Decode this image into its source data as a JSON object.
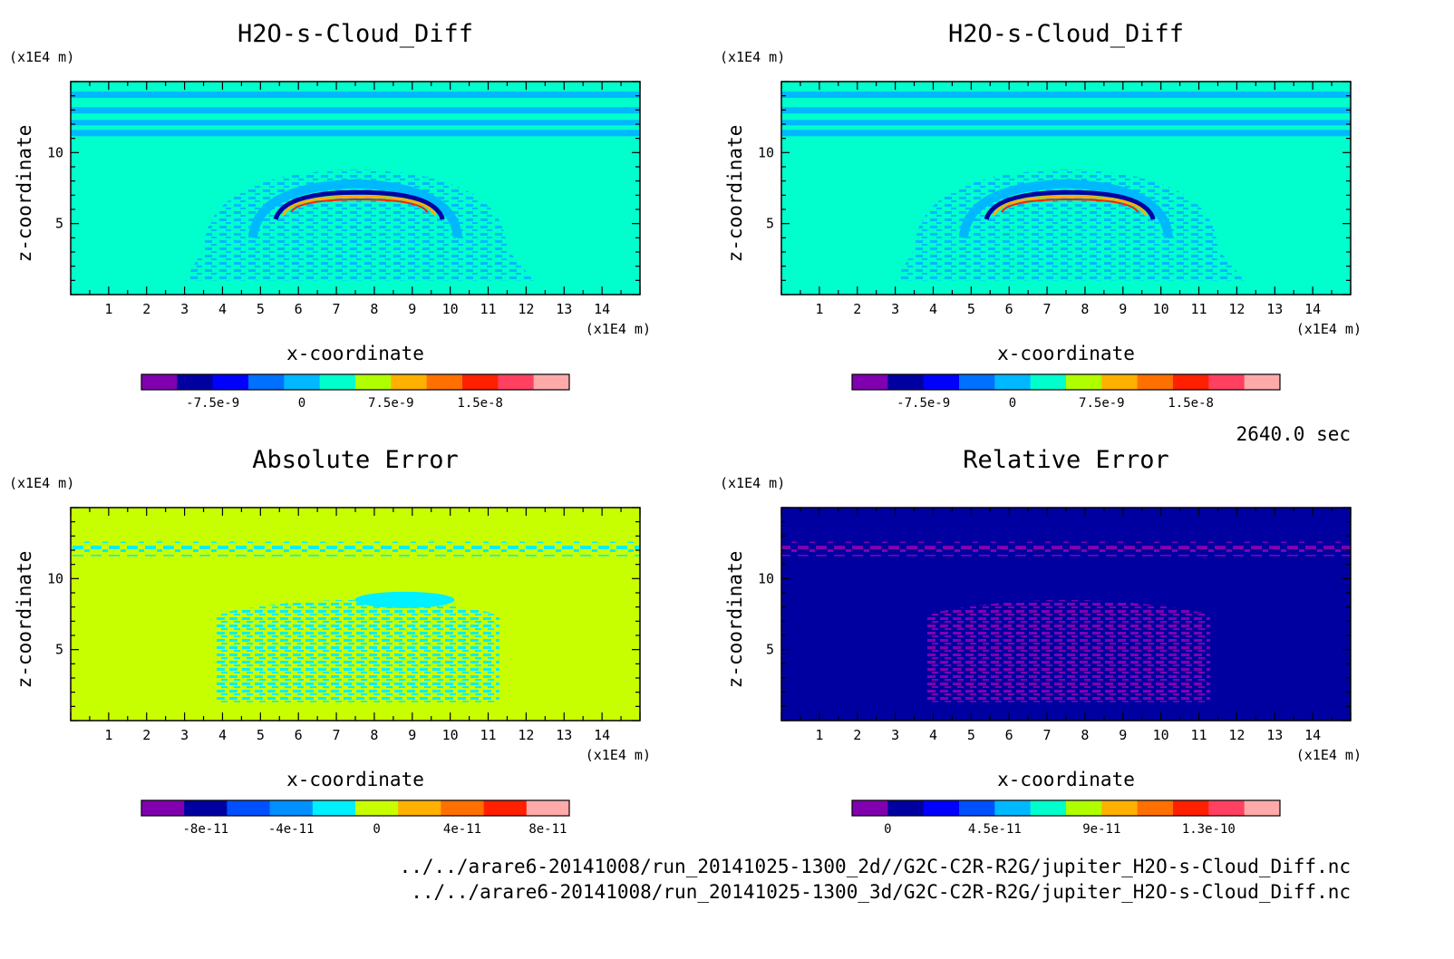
{
  "time_label": "2640.0 sec",
  "footer_lines": [
    "../../arare6-20141008/run_20141025-1300_2d//G2C-C2R-R2G/jupiter_H2O-s-Cloud_Diff.nc",
    "../../arare6-20141008/run_20141025-1300_3d/G2C-C2R-R2G/jupiter_H2O-s-Cloud_Diff.nc"
  ],
  "chart_data": [
    {
      "type": "heatmap",
      "title": "H2O-s-Cloud_Diff",
      "xlabel": "x-coordinate",
      "ylabel": "z-coordinate",
      "x_unit": "(x1E4 m)",
      "y_unit": "(x1E4 m)",
      "xlim": [
        0,
        15
      ],
      "ylim": [
        0,
        15
      ],
      "x_ticks": [
        1,
        2,
        3,
        4,
        5,
        6,
        7,
        8,
        9,
        10,
        11,
        12,
        13,
        14
      ],
      "y_ticks": [
        5,
        10
      ],
      "background_color": "#00ffcc",
      "colorbar": {
        "colors": [
          "#8000b0",
          "#0000a0",
          "#0000ff",
          "#0070ff",
          "#00b8ff",
          "#00ffcc",
          "#b0ff00",
          "#ffb000",
          "#ff7000",
          "#ff2000",
          "#ff4060",
          "#ffaaaa"
        ],
        "tick_labels": [
          {
            "label": "-7.5e-9",
            "index": 1.5
          },
          {
            "label": "0",
            "index": 4.0
          },
          {
            "label": "7.5e-9",
            "index": 6.5
          },
          {
            "label": "1.5e-8",
            "index": 9.0
          }
        ]
      },
      "features": "arc"
    },
    {
      "type": "heatmap",
      "title": "H2O-s-Cloud_Diff",
      "xlabel": "x-coordinate",
      "ylabel": "z-coordinate",
      "x_unit": "(x1E4 m)",
      "y_unit": "(x1E4 m)",
      "xlim": [
        0,
        15
      ],
      "ylim": [
        0,
        15
      ],
      "x_ticks": [
        1,
        2,
        3,
        4,
        5,
        6,
        7,
        8,
        9,
        10,
        11,
        12,
        13,
        14
      ],
      "y_ticks": [
        5,
        10
      ],
      "background_color": "#00ffcc",
      "colorbar": {
        "colors": [
          "#8000b0",
          "#0000a0",
          "#0000ff",
          "#0070ff",
          "#00b8ff",
          "#00ffcc",
          "#b0ff00",
          "#ffb000",
          "#ff7000",
          "#ff2000",
          "#ff4060",
          "#ffaaaa"
        ],
        "tick_labels": [
          {
            "label": "-7.5e-9",
            "index": 1.5
          },
          {
            "label": "0",
            "index": 4.0
          },
          {
            "label": "7.5e-9",
            "index": 6.5
          },
          {
            "label": "1.5e-8",
            "index": 9.0
          }
        ]
      },
      "features": "arc"
    },
    {
      "type": "heatmap",
      "title": "Absolute Error",
      "xlabel": "x-coordinate",
      "ylabel": "z-coordinate",
      "x_unit": "(x1E4 m)",
      "y_unit": "(x1E4 m)",
      "xlim": [
        0,
        15
      ],
      "ylim": [
        0,
        15
      ],
      "x_ticks": [
        1,
        2,
        3,
        4,
        5,
        6,
        7,
        8,
        9,
        10,
        11,
        12,
        13,
        14
      ],
      "y_ticks": [
        5,
        10
      ],
      "background_color": "#c8ff00",
      "colorbar": {
        "colors": [
          "#8000b0",
          "#0000a0",
          "#0050ff",
          "#0090ff",
          "#00f0ff",
          "#c8ff00",
          "#ffb000",
          "#ff7000",
          "#ff2000",
          "#ffaaaa"
        ],
        "tick_labels": [
          {
            "label": "-8e-11",
            "index": 1.0
          },
          {
            "label": "-4e-11",
            "index": 3.0
          },
          {
            "label": "0",
            "index": 5.0
          },
          {
            "label": "4e-11",
            "index": 7.0
          },
          {
            "label": "8e-11",
            "index": 9.0
          }
        ]
      },
      "features": "speckle-cyan"
    },
    {
      "type": "heatmap",
      "title": "Relative Error",
      "xlabel": "x-coordinate",
      "ylabel": "z-coordinate",
      "x_unit": "(x1E4 m)",
      "y_unit": "(x1E4 m)",
      "xlim": [
        0,
        15
      ],
      "ylim": [
        0,
        15
      ],
      "x_ticks": [
        1,
        2,
        3,
        4,
        5,
        6,
        7,
        8,
        9,
        10,
        11,
        12,
        13,
        14
      ],
      "y_ticks": [
        5,
        10
      ],
      "background_color": "#0000a0",
      "colorbar": {
        "colors": [
          "#8000b0",
          "#0000a0",
          "#0000ff",
          "#0050ff",
          "#00b8ff",
          "#00ffcc",
          "#b0ff00",
          "#ffb000",
          "#ff7000",
          "#ff2000",
          "#ff4060",
          "#ffaaaa"
        ],
        "tick_labels": [
          {
            "label": "0",
            "index": 0.5
          },
          {
            "label": "4.5e-11",
            "index": 3.5
          },
          {
            "label": "9e-11",
            "index": 6.5
          },
          {
            "label": "1.3e-10",
            "index": 9.5
          }
        ]
      },
      "features": "speckle-purple"
    }
  ]
}
